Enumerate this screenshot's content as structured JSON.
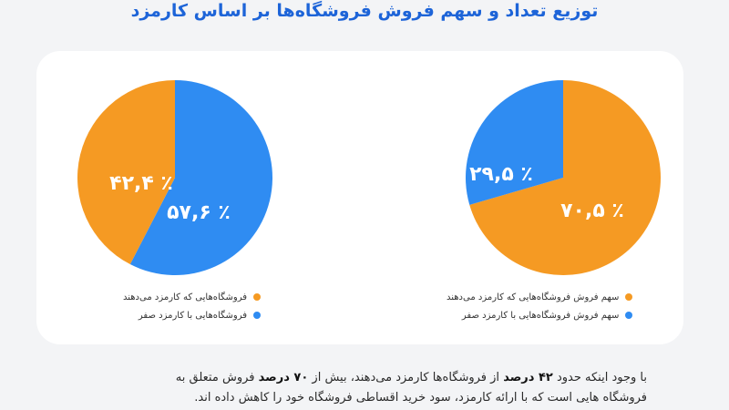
{
  "title": "توزیع تعداد و سهم فروش فروشگاه‌ها بر اساس کارمزد",
  "colors": {
    "orange": "#f59a23",
    "blue": "#2f8cf2",
    "title": "#1d64d8"
  },
  "chart_data": [
    {
      "type": "pie",
      "slices": [
        {
          "label": "فروشگاه‌هایی با کارمزد صفر",
          "value": 57.6,
          "display": "٪ ۵۷,۶",
          "color": "#2f8cf2"
        },
        {
          "label": "فروشگاه‌هایی که کارمزد می‌دهند",
          "value": 42.4,
          "display": "٪ ۴۲,۴",
          "color": "#f59a23"
        }
      ],
      "legend": [
        "فروشگاه‌هایی که کارمزد می‌دهند",
        "فروشگاه‌هایی با کارمزد صفر"
      ],
      "legend_colors": [
        "#f59a23",
        "#2f8cf2"
      ]
    },
    {
      "type": "pie",
      "slices": [
        {
          "label": "سهم فروش فروشگاه‌هایی که کارمزد می‌دهند",
          "value": 70.5,
          "display": "٪ ۷۰,۵",
          "color": "#f59a23"
        },
        {
          "label": "سهم فروش فروشگاه‌هایی با کارمزد صفر",
          "value": 29.5,
          "display": "٪ ۲۹,۵",
          "color": "#2f8cf2"
        }
      ],
      "legend": [
        "سهم فروش فروشگاه‌هایی که کارمزد می‌دهند",
        "سهم فروش فروشگاه‌هایی با کارمزد صفر"
      ],
      "legend_colors": [
        "#f59a23",
        "#2f8cf2"
      ]
    }
  ],
  "note": {
    "line1_a": "با وجود اینکه حدود",
    "line1_b": "۴۲ درصد",
    "line1_c": "از فروشگاه‌ها کارمزد می‌دهند، بیش از",
    "line1_d": "۷۰ درصد",
    "line1_e": "فروش متعلق به",
    "line2": "فروشگاه هایی است که با ارائه کارمزد، سود خرید اقساطی فروشگاه خود را کاهش داده اند."
  }
}
